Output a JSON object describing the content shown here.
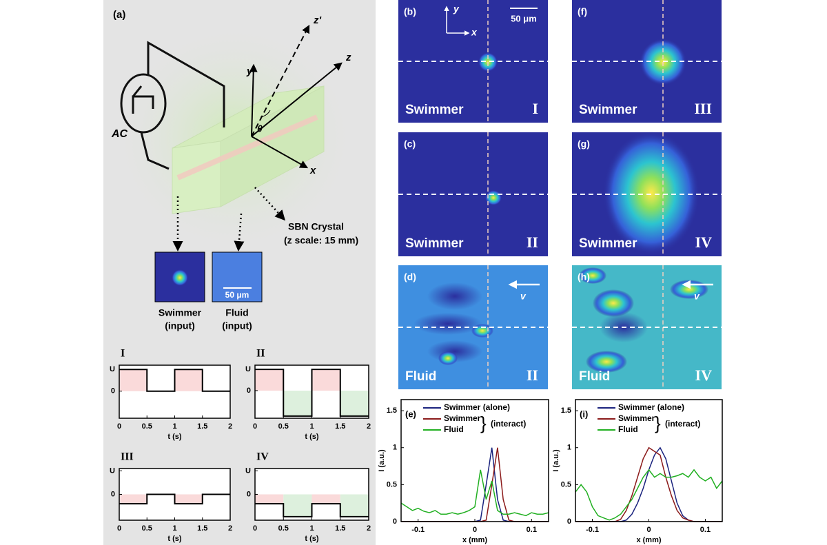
{
  "figure": {
    "diagram": {
      "label": "(a)",
      "source": "AC",
      "axis_y": "y",
      "axis_z_prime": "z'",
      "axis_z": "z",
      "axis_x": "x",
      "angle": "θ",
      "crystal": "SBN Crystal",
      "crystal_scale": "(z scale: 15 mm)",
      "inputs": [
        {
          "name": "Swimmer",
          "note": "(input)"
        },
        {
          "name": "Fluid",
          "note": "(input)",
          "scale": "50 μm"
        }
      ]
    },
    "panels": [
      {
        "label": "(b)",
        "name": "Swimmer",
        "stage": "I",
        "scale": "50 μm",
        "axis_y": "y",
        "axis_x": "x"
      },
      {
        "label": "(c)",
        "name": "Swimmer",
        "stage": "II"
      },
      {
        "label": "(d)",
        "name": "Fluid",
        "stage": "II",
        "flow": "v"
      },
      {
        "label": "(f)",
        "name": "Swimmer",
        "stage": "III"
      },
      {
        "label": "(g)",
        "name": "Swimmer",
        "stage": "IV"
      },
      {
        "label": "(h)",
        "name": "Fluid",
        "stage": "IV",
        "flow": "v"
      }
    ]
  },
  "chart_data": [
    {
      "type": "line",
      "title": "I",
      "x_label": "t (s)",
      "fill": true,
      "x": [
        0,
        0.5,
        0.5,
        1,
        1,
        1.5,
        1.5,
        2
      ],
      "series": [
        {
          "color": "#000000",
          "values": [
            1,
            1,
            0,
            0,
            1,
            1,
            0,
            0
          ]
        }
      ],
      "xlim": [
        0,
        2
      ],
      "xticks": [
        0,
        0.5,
        1,
        1.5,
        2
      ],
      "ylim": [
        -1.25,
        1.2
      ],
      "yticks": [
        {
          "value": 1,
          "label": "U"
        },
        0
      ]
    },
    {
      "type": "line",
      "title": "II",
      "x_label": "t (s)",
      "fill": true,
      "x": [
        0,
        0.5,
        0.5,
        1,
        1,
        1.5,
        1.5,
        2
      ],
      "series": [
        {
          "color": "#000000",
          "values": [
            1,
            1,
            -1.2,
            -1.2,
            1,
            1,
            -1.2,
            -1.2
          ]
        }
      ],
      "xlim": [
        0,
        2
      ],
      "xticks": [
        0,
        0.5,
        1,
        1.5,
        2
      ],
      "ylim": [
        -1.3,
        1.2
      ],
      "yticks": [
        {
          "value": 1,
          "label": "U"
        },
        0
      ]
    },
    {
      "type": "line",
      "title": "III",
      "x_label": "t (s)",
      "fill": true,
      "x": [
        0,
        0.5,
        0.5,
        1,
        1,
        1.5,
        1.5,
        2
      ],
      "series": [
        {
          "color": "#000000",
          "values": [
            -0.4,
            -0.4,
            0,
            0,
            -0.4,
            -0.4,
            0,
            0
          ]
        }
      ],
      "xlim": [
        0,
        2
      ],
      "xticks": [
        0,
        0.5,
        1,
        1.5,
        2
      ],
      "ylim": [
        -1.1,
        1.1
      ],
      "yticks": [
        {
          "value": 1,
          "label": "U"
        },
        0
      ]
    },
    {
      "type": "line",
      "title": "IV",
      "x_label": "t (s)",
      "fill": true,
      "x": [
        0,
        0.5,
        0.5,
        1,
        1,
        1.5,
        1.5,
        2
      ],
      "series": [
        {
          "color": "#000000",
          "values": [
            -0.4,
            -0.4,
            -0.95,
            -0.95,
            -0.4,
            -0.4,
            -0.95,
            -0.95
          ]
        }
      ],
      "xlim": [
        0,
        2
      ],
      "xticks": [
        0,
        0.5,
        1,
        1.5,
        2
      ],
      "ylim": [
        -1.1,
        1.1
      ],
      "yticks": [
        {
          "value": 1,
          "label": "U"
        },
        0
      ]
    },
    {
      "type": "line",
      "title": "(e)",
      "x_label": "x (mm)",
      "y_label": "I (a.u.)",
      "legend_note": "(interact)",
      "x": [
        -0.13,
        -0.12,
        -0.11,
        -0.1,
        -0.09,
        -0.08,
        -0.07,
        -0.06,
        -0.05,
        -0.04,
        -0.03,
        -0.02,
        -0.01,
        0,
        0.01,
        0.02,
        0.03,
        0.04,
        0.05,
        0.06,
        0.07,
        0.08,
        0.09,
        0.1,
        0.11,
        0.12,
        0.13
      ],
      "series": [
        {
          "name": "Swimmer (alone)",
          "color": "#1a237e",
          "values": [
            0,
            0,
            0,
            0,
            0,
            0,
            0,
            0,
            0,
            0,
            0,
            0,
            0,
            0,
            0.02,
            0.5,
            1,
            0.3,
            0.02,
            0,
            0,
            0,
            0,
            0,
            0,
            0,
            0
          ]
        },
        {
          "name": "Swimmer",
          "color": "#8b1a1a",
          "values": [
            0,
            0,
            0,
            0,
            0,
            0,
            0,
            0,
            0,
            0,
            0,
            0,
            0,
            0,
            0,
            0.02,
            0.5,
            1,
            0.3,
            0.02,
            0,
            0,
            0,
            0,
            0,
            0,
            0
          ]
        },
        {
          "name": "Fluid",
          "color": "#22b022",
          "values": [
            0.25,
            0.2,
            0.15,
            0.18,
            0.14,
            0.12,
            0.15,
            0.1,
            0.1,
            0.12,
            0.1,
            0.12,
            0.15,
            0.2,
            0.7,
            0.3,
            0.55,
            0.15,
            0.1,
            0.1,
            0.12,
            0.1,
            0.08,
            0.12,
            0.1,
            0.1,
            0.12
          ]
        }
      ],
      "xlim": [
        -0.13,
        0.13
      ],
      "xticks": [
        -0.1,
        0,
        0.1
      ],
      "ylim": [
        0,
        1.65
      ],
      "yticks": [
        0,
        0.5,
        1,
        1.5
      ]
    },
    {
      "type": "line",
      "title": "(i)",
      "x_label": "x (mm)",
      "y_label": "I (a.u.)",
      "legend_note": "(interact)",
      "x": [
        -0.13,
        -0.12,
        -0.11,
        -0.1,
        -0.09,
        -0.08,
        -0.07,
        -0.06,
        -0.05,
        -0.04,
        -0.03,
        -0.02,
        -0.01,
        0,
        0.01,
        0.02,
        0.03,
        0.04,
        0.05,
        0.06,
        0.07,
        0.08,
        0.09,
        0.1,
        0.11,
        0.12,
        0.13
      ],
      "series": [
        {
          "name": "Swimmer (alone)",
          "color": "#1a237e",
          "values": [
            0,
            0,
            0,
            0,
            0,
            0,
            0,
            0,
            0,
            0.02,
            0.1,
            0.25,
            0.45,
            0.7,
            0.9,
            1,
            0.85,
            0.55,
            0.25,
            0.08,
            0.02,
            0,
            0,
            0,
            0,
            0,
            0
          ]
        },
        {
          "name": "Swimmer",
          "color": "#8b1a1a",
          "values": [
            0,
            0,
            0,
            0,
            0,
            0,
            0,
            0,
            0.03,
            0.15,
            0.35,
            0.6,
            0.85,
            1,
            0.95,
            0.9,
            0.6,
            0.35,
            0.15,
            0.05,
            0.02,
            0,
            0,
            0,
            0,
            0,
            0
          ]
        },
        {
          "name": "Fluid",
          "color": "#22b022",
          "values": [
            0.4,
            0.5,
            0.4,
            0.2,
            0.08,
            0.05,
            0.02,
            0.05,
            0.1,
            0.2,
            0.3,
            0.45,
            0.6,
            0.7,
            0.6,
            0.65,
            0.6,
            0.6,
            0.62,
            0.65,
            0.6,
            0.7,
            0.6,
            0.55,
            0.6,
            0.45,
            0.55
          ]
        }
      ],
      "xlim": [
        -0.13,
        0.13
      ],
      "xticks": [
        -0.1,
        0,
        0.1
      ],
      "ylim": [
        0,
        1.65
      ],
      "yticks": [
        0,
        0.5,
        1,
        1.5
      ]
    }
  ]
}
